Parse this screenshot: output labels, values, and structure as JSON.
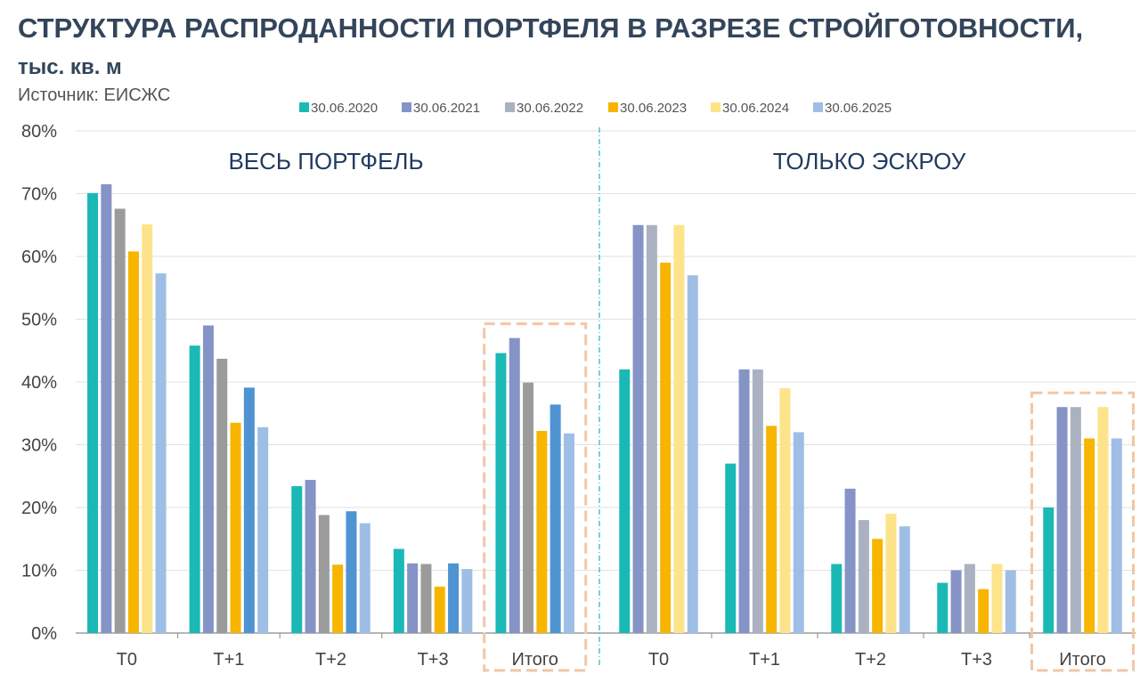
{
  "chart_data": {
    "type": "bar",
    "title": "СТРУКТУРА РАСПРОДАННОСТИ ПОРТФЕЛЯ В РАЗРЕЗЕ СТРОЙГОТОВНОСТИ,",
    "subtitle": "тыс. кв. м",
    "source": "Источник: ЕИСЖС",
    "ylim": [
      0,
      80
    ],
    "yticks": [
      "0%",
      "10%",
      "20%",
      "30%",
      "40%",
      "50%",
      "60%",
      "70%",
      "80%"
    ],
    "grid": true,
    "legend_position": "top",
    "legend": [
      {
        "name": "30.06.2020",
        "color": "#1bb9b6"
      },
      {
        "name": "30.06.2021",
        "color": "#8593c6"
      },
      {
        "name": "30.06.2022",
        "color": "#aab2c1"
      },
      {
        "name": "30.06.2023",
        "color": "#f7b500"
      },
      {
        "name": "30.06.2024",
        "color": "#fde38a"
      },
      {
        "name": "30.06.2025",
        "color": "#9ebee6"
      }
    ],
    "panels": [
      {
        "title": "ВЕСЬ ПОРТФЕЛЬ",
        "categories": [
          "Т0",
          "Т+1",
          "Т+2",
          "Т+3",
          "Итого"
        ],
        "highlight_category": "Итого",
        "series": [
          {
            "name": "30.06.2020",
            "color": "#1bb9b6",
            "values": [
              70.1,
              45.8,
              23.4,
              13.4,
              44.6
            ]
          },
          {
            "name": "30.06.2021",
            "color": "#8593c6",
            "values": [
              71.5,
              49.0,
              24.4,
              11.1,
              47.0
            ]
          },
          {
            "name": "30.06.2022",
            "color": "#9b9b9b",
            "values": [
              67.6,
              43.7,
              18.8,
              11.0,
              39.9
            ]
          },
          {
            "name": "30.06.2023",
            "color": "#f7b500",
            "values": [
              60.8,
              33.5,
              10.9,
              7.4,
              32.2
            ]
          },
          {
            "name": "30.06.2024",
            "color": "#fde38a",
            "values": [
              65.1,
              null,
              null,
              null,
              null
            ]
          },
          {
            "name": "30.06.2024",
            "color": "#4f93d2",
            "values": [
              null,
              39.1,
              19.4,
              11.1,
              36.4
            ]
          },
          {
            "name": "30.06.2025",
            "color": "#9ebee6",
            "values": [
              57.3,
              32.8,
              17.5,
              10.2,
              31.8
            ]
          }
        ]
      },
      {
        "title": "ТОЛЬКО ЭСКРОУ",
        "categories": [
          "Т0",
          "Т+1",
          "Т+2",
          "Т+3",
          "Итого"
        ],
        "highlight_category": "Итого",
        "series": [
          {
            "name": "30.06.2020",
            "color": "#1bb9b6",
            "values": [
              42,
              27,
              11,
              8,
              20
            ]
          },
          {
            "name": "30.06.2021",
            "color": "#8593c6",
            "values": [
              65,
              42,
              23,
              10,
              36
            ]
          },
          {
            "name": "30.06.2022",
            "color": "#aab2c1",
            "values": [
              65,
              42,
              18,
              11,
              36
            ]
          },
          {
            "name": "30.06.2023",
            "color": "#f7b500",
            "values": [
              59,
              33,
              15,
              7,
              31
            ]
          },
          {
            "name": "30.06.2024",
            "color": "#fde38a",
            "values": [
              65,
              39,
              19,
              11,
              36
            ]
          },
          {
            "name": "30.06.2025",
            "color": "#9ebee6",
            "values": [
              57,
              32,
              17,
              10,
              31
            ]
          }
        ]
      }
    ]
  }
}
